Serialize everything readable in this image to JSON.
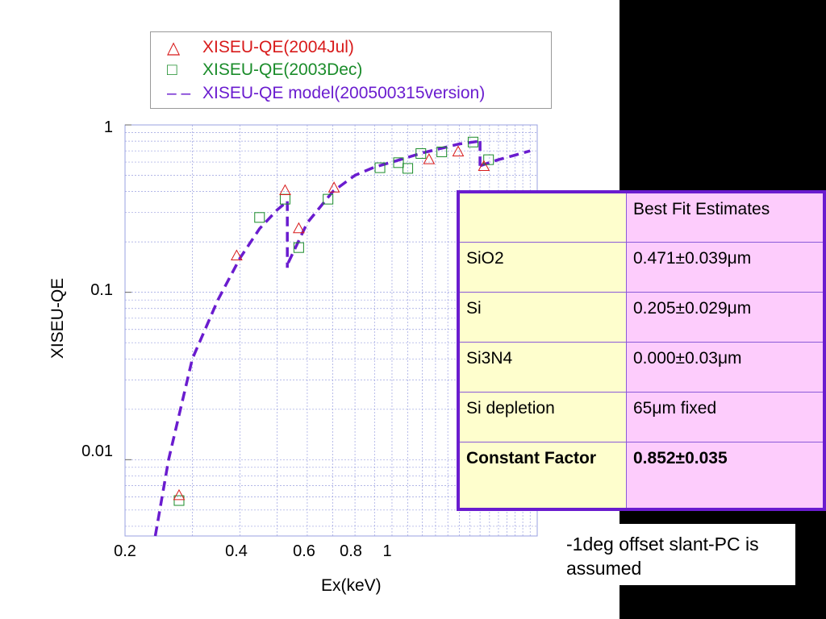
{
  "chart_data": {
    "type": "scatter",
    "xlabel": "Ex(keV)",
    "ylabel": "XISEU-QE",
    "xscale": "log",
    "yscale": "log",
    "xlim": [
      0.2,
      2.4
    ],
    "ylim": [
      0.0035,
      1.0
    ],
    "yticks": [
      "1",
      "0.1",
      "0.01"
    ],
    "xticks": [
      "0.2",
      "0.4",
      "0.6",
      "0.8",
      "1"
    ],
    "grid": true,
    "legend_position": "top",
    "series": [
      {
        "name": "XISEU-QE(2004Jul)",
        "marker": "triangle",
        "color": "#d81a1a",
        "points": [
          [
            0.277,
            0.0061
          ],
          [
            0.392,
            0.165
          ],
          [
            0.525,
            0.405
          ],
          [
            0.57,
            0.24
          ],
          [
            0.705,
            0.42
          ],
          [
            1.25,
            0.62
          ],
          [
            1.49,
            0.69
          ],
          [
            1.74,
            0.565
          ]
        ]
      },
      {
        "name": "XISEU-QE(2003Dec)",
        "marker": "square",
        "color": "#1a8c2a",
        "points": [
          [
            0.277,
            0.0057
          ],
          [
            0.45,
            0.28
          ],
          [
            0.525,
            0.36
          ],
          [
            0.57,
            0.185
          ],
          [
            0.68,
            0.36
          ],
          [
            0.93,
            0.555
          ],
          [
            1.04,
            0.595
          ],
          [
            1.1,
            0.55
          ],
          [
            1.19,
            0.675
          ],
          [
            1.35,
            0.69
          ],
          [
            1.63,
            0.79
          ],
          [
            1.79,
            0.62
          ]
        ]
      },
      {
        "name": "XISEU-QE model(200500315version)",
        "style": "dashed",
        "color": "#6a1ccf",
        "segments": [
          [
            [
              0.24,
              0.0035
            ],
            [
              0.26,
              0.01
            ],
            [
              0.3,
              0.04
            ],
            [
              0.35,
              0.09
            ],
            [
              0.4,
              0.16
            ],
            [
              0.45,
              0.24
            ],
            [
              0.5,
              0.31
            ],
            [
              0.532,
              0.35
            ]
          ],
          [
            [
              0.532,
              0.35
            ],
            [
              0.532,
              0.14
            ]
          ],
          [
            [
              0.535,
              0.15
            ],
            [
              0.6,
              0.26
            ],
            [
              0.7,
              0.4
            ],
            [
              0.8,
              0.5
            ],
            [
              0.9,
              0.56
            ],
            [
              1.0,
              0.6
            ],
            [
              1.2,
              0.68
            ],
            [
              1.5,
              0.77
            ],
            [
              1.7,
              0.8
            ]
          ],
          [
            [
              1.7,
              0.8
            ],
            [
              1.7,
              0.57
            ]
          ],
          [
            [
              1.7,
              0.57
            ],
            [
              1.9,
              0.62
            ],
            [
              2.1,
              0.66
            ],
            [
              2.3,
              0.7
            ]
          ]
        ]
      }
    ],
    "table": {
      "header": [
        "",
        "Best Fit Estimates"
      ],
      "rows": [
        [
          "SiO2",
          "0.471±0.039μm"
        ],
        [
          "Si",
          "0.205±0.029μm"
        ],
        [
          "Si3N4",
          "0.000±0.03μm"
        ],
        [
          "Si depletion",
          "65μm fixed"
        ],
        [
          "Constant Factor",
          "0.852±0.035"
        ]
      ]
    },
    "annotation": "-1deg offset slant-PC is assumed"
  },
  "legend": {
    "items": [
      {
        "marker": "△",
        "label": "XISEU-QE(2004Jul)"
      },
      {
        "marker": "□",
        "label": "XISEU-QE(2003Dec)"
      },
      {
        "marker": "– –",
        "label": "XISEU-QE model(200500315version)"
      }
    ]
  },
  "axes": {
    "ylabel": "XISEU-QE",
    "xlabel": "Ex(keV)",
    "yticks": [
      "1",
      "0.1",
      "0.01"
    ],
    "xticks": [
      "0.2",
      "0.4",
      "0.6",
      "0.8",
      "1"
    ]
  },
  "table": {
    "header": [
      "",
      "Best Fit Estimates"
    ],
    "rows": [
      {
        "param": "SiO2",
        "value": "0.471±0.039μm"
      },
      {
        "param": "Si",
        "value": "0.205±0.029μm"
      },
      {
        "param": "Si3N4",
        "value": "0.000±0.03μm"
      },
      {
        "param": "Si depletion",
        "value": "65μm fixed"
      },
      {
        "param": "Constant Factor",
        "value": "0.852±0.035"
      }
    ]
  },
  "note": "-1deg offset slant-PC is assumed",
  "colors": {
    "red_series": "#d81a1a",
    "green_series": "#1a8c2a",
    "model": "#6a1ccf",
    "table_left": "#fefecd",
    "table_right": "#fdccfc"
  }
}
